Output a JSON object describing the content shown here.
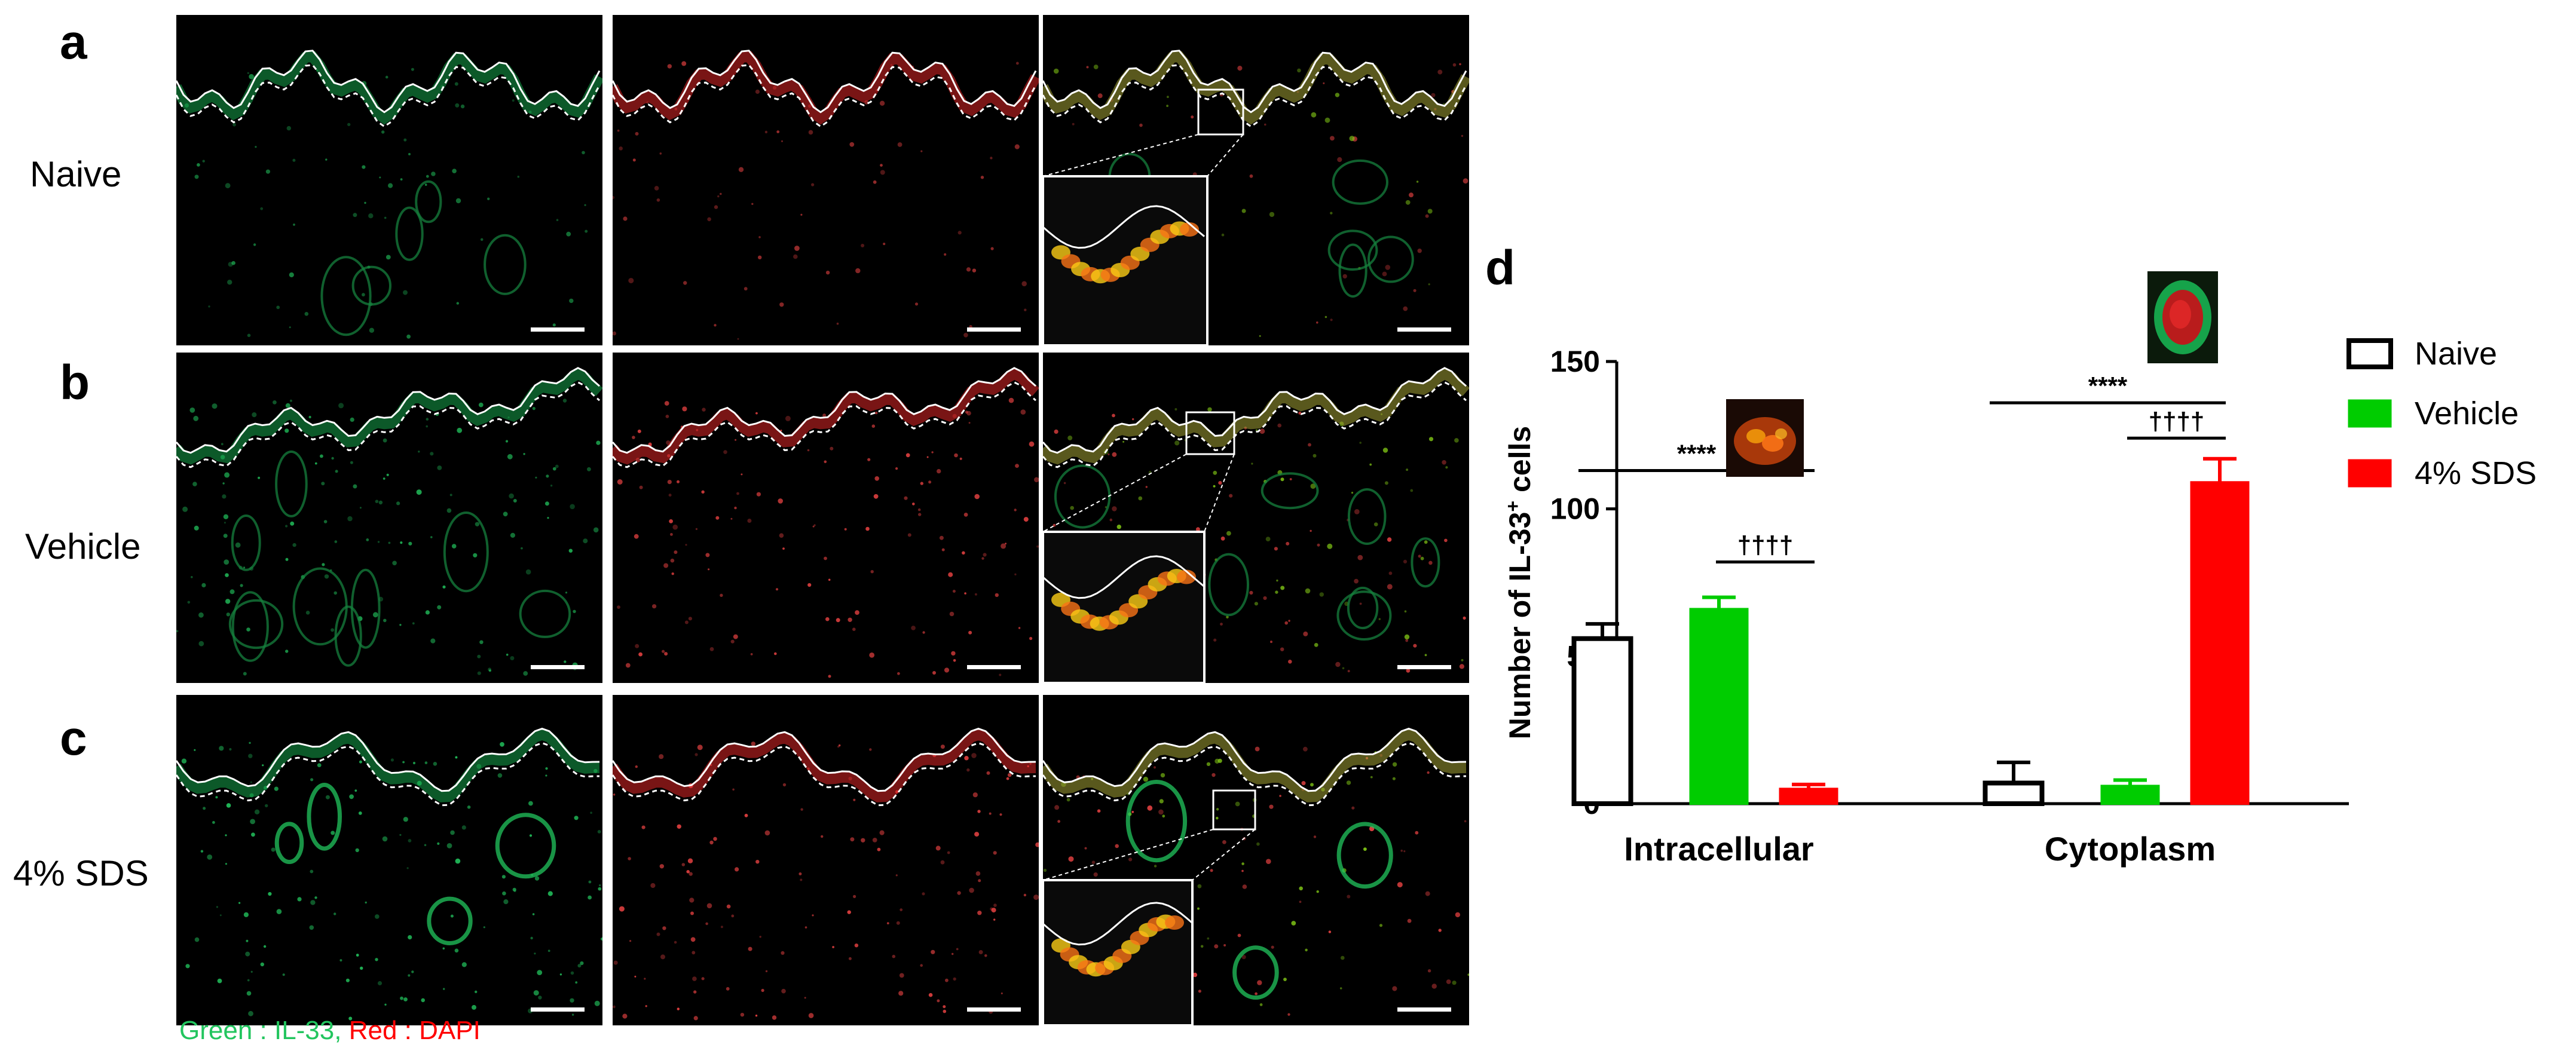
{
  "panels": {
    "a": {
      "letter": "a",
      "label": "Naive"
    },
    "b": {
      "letter": "b",
      "label": "Vehicle"
    },
    "c": {
      "letter": "c",
      "label": "4% SDS"
    },
    "d": {
      "letter": "d"
    }
  },
  "caption": {
    "green_label": "Green : IL-33,",
    "red_label": "Red : DAPI",
    "green_color": "#22c55e",
    "red_color": "#ff0000"
  },
  "chart_data": {
    "type": "bar",
    "ylabel": "Number of IL-33",
    "ylabel_sup": "+",
    "ylabel_suffix": " cells",
    "ylim": [
      0,
      150
    ],
    "yticks": [
      0,
      50,
      100,
      150
    ],
    "categories": [
      "Intracellular",
      "Cytoplasm"
    ],
    "series": [
      {
        "name": "Naive",
        "values": [
          56,
          7
        ],
        "errors": [
          5,
          7
        ],
        "fill": "#ffffff",
        "stroke": "#000000"
      },
      {
        "name": "Vehicle",
        "values": [
          66,
          6
        ],
        "errors": [
          4,
          2
        ],
        "fill": "#00cc00",
        "stroke": "#00cc00"
      },
      {
        "name": "4% SDS",
        "values": [
          5,
          109
        ],
        "errors": [
          1.5,
          8
        ],
        "fill": "#ff0000",
        "stroke": "#ff0000"
      }
    ],
    "legend_position": "right",
    "significance": [
      {
        "label": "****",
        "category": 0,
        "from_series": 0,
        "to_series": 2,
        "level": 113
      },
      {
        "label": "††††",
        "category": 0,
        "from_series": 1,
        "to_series": 2,
        "level": 82
      },
      {
        "label": "****",
        "category": 1,
        "from_series": 0,
        "to_series": 2,
        "level": 136
      },
      {
        "label": "††††",
        "category": 1,
        "from_series": 1,
        "to_series": 2,
        "level": 124
      }
    ]
  }
}
